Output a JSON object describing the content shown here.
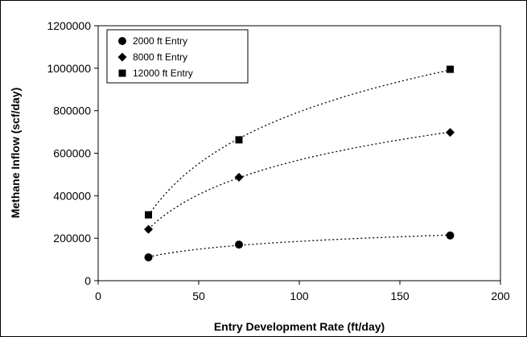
{
  "chart_data": {
    "type": "scatter",
    "xlabel": "Entry Development Rate (ft/day)",
    "ylabel": "Methane Inflow (scf/day)",
    "xlim": [
      0,
      200
    ],
    "ylim": [
      0,
      1200000
    ],
    "x_ticks": [
      "0",
      "50",
      "100",
      "150",
      "200"
    ],
    "y_ticks": [
      "0",
      "200000",
      "400000",
      "600000",
      "800000",
      "1000000",
      "1200000"
    ],
    "grid": false,
    "legend_position": "top-left",
    "trendline": "dotted logarithmic",
    "series": [
      {
        "name": "2000 ft Entry",
        "marker": "circle",
        "x": [
          25,
          70,
          175
        ],
        "y": [
          110000,
          170000,
          213000
        ]
      },
      {
        "name": "8000 ft Entry",
        "marker": "diamond",
        "x": [
          25,
          70,
          175
        ],
        "y": [
          242000,
          487000,
          698000
        ]
      },
      {
        "name": "12000 ft Entry",
        "marker": "square",
        "x": [
          25,
          70,
          175
        ],
        "y": [
          310000,
          663000,
          995000
        ]
      }
    ]
  }
}
